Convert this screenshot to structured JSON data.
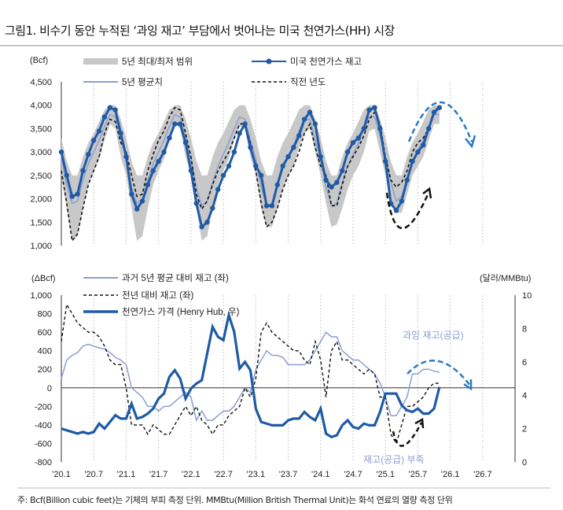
{
  "title": "그림1. 비수기 동안 누적된 ‘과잉 재고’ 부담에서 벗어나는 미국 천연가스(HH) 시장",
  "footnote": "주: Bcf(Billion cubic feet)는 기체의 부피 측정 단위. MMBtu(Million British Thermal Unit)는 화석 연료의 열량 측정 단위",
  "colors": {
    "storage": "#1f5aa6",
    "avg": "#8a9fd1",
    "range": "#c8c8c8",
    "prev": "#111111",
    "price": "#1f5aa6",
    "arrow_blue": "#2a7ac8",
    "annot": "#8a9fd1"
  },
  "chart_data": [
    {
      "type": "line",
      "unit_label": "(Bcf)",
      "ylim": [
        1000,
        4500
      ],
      "yticks": [
        "4,500",
        "4,000",
        "3,500",
        "3,000",
        "2,500",
        "2,000",
        "1,500",
        "1,000"
      ],
      "ytick_values": [
        4500,
        4000,
        3500,
        3000,
        2500,
        2000,
        1500,
        1000
      ],
      "x_start": "2020-01",
      "x_step": "month",
      "legend": {
        "range": "5년 최대/최저 범위",
        "storage": "미국 천연가스 재고",
        "avg": "5년 평균치",
        "prev": "직전 년도"
      },
      "series": {
        "storage": [
          3000,
          2500,
          2050,
          2100,
          2600,
          2950,
          3250,
          3450,
          3750,
          3950,
          3900,
          3400,
          2900,
          2100,
          1780,
          1950,
          2300,
          2600,
          2800,
          3000,
          3300,
          3600,
          3600,
          3200,
          2600,
          1900,
          1400,
          1500,
          1800,
          2200,
          2500,
          2700,
          3000,
          3400,
          3600,
          3100,
          2700,
          2500,
          1850,
          1850,
          2300,
          2700,
          2900,
          3100,
          3350,
          3700,
          3850,
          3600,
          2900,
          2400,
          2250,
          2350,
          2600,
          3000,
          3200,
          3300,
          3500,
          3900,
          3950,
          3500,
          2800,
          1900,
          1750,
          1950,
          2400,
          2800,
          3000,
          3150,
          3500,
          3850,
          3950
        ],
        "avg": [
          2900,
          2300,
          1900,
          1950,
          2400,
          2750,
          3000,
          3250,
          3550,
          3800,
          3750,
          3300,
          2850,
          2250,
          1900,
          2000,
          2400,
          2750,
          3000,
          3250,
          3550,
          3800,
          3750,
          3300,
          2850,
          2250,
          1850,
          1950,
          2350,
          2700,
          2950,
          3200,
          3500,
          3750,
          3700,
          3250,
          2850,
          2250,
          1850,
          1900,
          2300,
          2650,
          2900,
          3150,
          3450,
          3700,
          3700,
          3250,
          2850,
          2250,
          1850,
          1900,
          2350,
          2700,
          2950,
          3200,
          3500,
          3750,
          3750,
          3350,
          2900,
          2350,
          1950,
          2050,
          2450,
          2800,
          3050,
          3250,
          3550,
          3800,
          3800
        ],
        "range_max": [
          3300,
          2800,
          2500,
          2500,
          2900,
          3200,
          3400,
          3650,
          3900,
          4000,
          4000,
          3700,
          3300,
          2800,
          2500,
          2500,
          2900,
          3200,
          3400,
          3650,
          3900,
          4000,
          4000,
          3700,
          3300,
          2800,
          2500,
          2500,
          2900,
          3200,
          3400,
          3650,
          3900,
          4000,
          4000,
          3700,
          3300,
          2800,
          2500,
          2500,
          2900,
          3200,
          3400,
          3650,
          3900,
          4000,
          4000,
          3700,
          3300,
          2800,
          2500,
          2500,
          2900,
          3200,
          3400,
          3650,
          3900,
          4000,
          4000,
          3700,
          3300,
          2800,
          2500,
          2500,
          2900,
          3200,
          3400,
          3650,
          3900,
          4000,
          4000
        ],
        "range_min": [
          2500,
          1800,
          1100,
          1200,
          1800,
          2300,
          2600,
          2850,
          3250,
          3600,
          3500,
          2900,
          2500,
          1800,
          1100,
          1200,
          1800,
          2300,
          2600,
          2850,
          3250,
          3600,
          3500,
          2900,
          2500,
          1800,
          1100,
          1200,
          1800,
          2300,
          2600,
          2850,
          3250,
          3550,
          3500,
          2900,
          2500,
          1800,
          1400,
          1400,
          1800,
          2200,
          2500,
          2700,
          3100,
          3400,
          3500,
          3000,
          2500,
          1900,
          1400,
          1450,
          1800,
          2200,
          2500,
          2700,
          3000,
          3450,
          3500,
          3000,
          2500,
          1900,
          1700,
          1700,
          2100,
          2500,
          2700,
          2900,
          3250,
          3600,
          3600
        ],
        "prev": [
          2600,
          1900,
          1100,
          1250,
          1800,
          2300,
          2600,
          2900,
          3400,
          3700,
          3650,
          3200,
          3000,
          2500,
          2050,
          2100,
          2600,
          2950,
          3250,
          3450,
          3750,
          3950,
          3900,
          3400,
          2900,
          2100,
          1780,
          1950,
          2300,
          2600,
          2800,
          3000,
          3300,
          3600,
          3600,
          3200,
          2600,
          1900,
          1400,
          1500,
          1800,
          2200,
          2500,
          2700,
          3000,
          3400,
          3600,
          3100,
          2700,
          2500,
          1850,
          1850,
          2300,
          2700,
          2900,
          3100,
          3350,
          3700,
          3850,
          3600,
          2900,
          2400,
          2250,
          2350,
          2600,
          3000,
          3200,
          3300,
          3500,
          3900,
          3950
        ]
      }
    },
    {
      "type": "line",
      "unit_label_left": "(ΔBcf)",
      "unit_label_right": "(달러/MMBtu)",
      "ylim_left": [
        -800,
        1000
      ],
      "ylim_right": [
        0,
        10
      ],
      "yticks_left": [
        "1,000",
        "800",
        "600",
        "400",
        "200",
        "0",
        "-200",
        "-400",
        "-600",
        "-800"
      ],
      "ytick_values_left": [
        1000,
        800,
        600,
        400,
        200,
        0,
        -200,
        -400,
        -600,
        -800
      ],
      "yticks_right": [
        "10",
        "8",
        "6",
        "4",
        "2",
        "0"
      ],
      "ytick_values_right": [
        10,
        8,
        6,
        4,
        2,
        0
      ],
      "xticks": [
        "'20.1",
        "'20.7",
        "'21.1",
        "'21.7",
        "'22.1",
        "'22.7",
        "'23.1",
        "'23.7",
        "'24.1",
        "'24.7",
        "'25.1",
        "'25.7",
        "'26.1",
        "'26.7"
      ],
      "legend": {
        "vs5y": "과거 5년 평균 대비 재고 (좌)",
        "yoy": "전년 대비 재고 (좌)",
        "price": "천연가스 가격 (Henry Hub, 우)"
      },
      "annotations": {
        "surplus": "과잉 재고(공급)",
        "deficit": "재고(공급) 부족"
      },
      "series": {
        "vs5y": [
          100,
          300,
          350,
          380,
          450,
          470,
          450,
          430,
          420,
          380,
          330,
          300,
          250,
          0,
          -50,
          -100,
          -200,
          -200,
          -250,
          -200,
          -200,
          -150,
          -100,
          -50,
          -100,
          -350,
          -250,
          -350,
          -350,
          -300,
          -250,
          -250,
          -200,
          -100,
          0,
          -50,
          200,
          300,
          400,
          350,
          350,
          330,
          250,
          250,
          250,
          250,
          300,
          400,
          500,
          600,
          550,
          550,
          400,
          350,
          300,
          300,
          250,
          200,
          150,
          50,
          -100,
          -300,
          -300,
          -200,
          -100,
          150,
          150,
          200,
          200,
          180,
          170
        ],
        "yoy": [
          500,
          900,
          800,
          700,
          650,
          600,
          600,
          550,
          450,
          300,
          250,
          250,
          0,
          -400,
          -400,
          -400,
          -500,
          -400,
          -450,
          -500,
          -500,
          -400,
          -300,
          -200,
          -300,
          -200,
          -350,
          -400,
          -500,
          -400,
          -400,
          -300,
          -250,
          -200,
          0,
          -100,
          100,
          600,
          700,
          600,
          550,
          500,
          450,
          400,
          400,
          300,
          250,
          500,
          300,
          -100,
          400,
          500,
          300,
          300,
          250,
          200,
          150,
          200,
          150,
          -100,
          -100,
          -500,
          -600,
          -400,
          -200,
          -200,
          -150,
          -100,
          0,
          50,
          50
        ],
        "price": [
          2.0,
          1.9,
          1.8,
          1.7,
          1.8,
          1.7,
          1.8,
          2.3,
          2.0,
          2.4,
          2.8,
          2.6,
          2.6,
          3.5,
          2.6,
          2.7,
          2.9,
          3.2,
          3.8,
          4.1,
          5.1,
          5.5,
          5.0,
          3.8,
          4.4,
          4.7,
          4.9,
          6.5,
          8.1,
          7.5,
          7.3,
          8.8,
          7.8,
          5.6,
          6.0,
          5.5,
          3.2,
          2.4,
          2.3,
          2.2,
          2.2,
          2.2,
          2.5,
          2.6,
          2.6,
          3.0,
          2.7,
          2.5,
          3.2,
          1.7,
          1.5,
          1.6,
          2.2,
          2.5,
          2.1,
          2.0,
          2.3,
          2.2,
          2.2,
          3.0,
          4.1,
          4.1,
          4.1,
          3.4,
          3.1,
          3.0,
          3.2,
          2.9,
          2.9,
          3.2,
          4.5
        ]
      }
    }
  ]
}
